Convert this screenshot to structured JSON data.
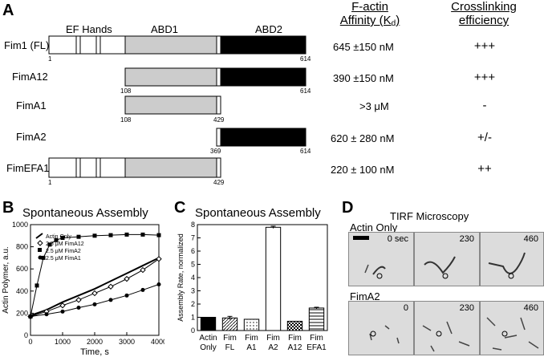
{
  "panelA": {
    "letter": "A",
    "header_affinity_line1": "F-actin",
    "header_affinity_line2": "Affinity (K",
    "header_affinity_sub": "d",
    "header_affinity_close": ")",
    "header_cross_line1": "Crosslinking",
    "header_cross_line2": "efficiency",
    "domain_labels": {
      "ef": "EF Hands",
      "abd1": "ABD1",
      "abd2": "ABD2"
    },
    "constructs": [
      {
        "name": "Fim1 (FL)",
        "start": "1",
        "end": "614",
        "affinity": "645 ±150 nM",
        "cross": "+++"
      },
      {
        "name": "FimA12",
        "start": "108",
        "end": "614",
        "affinity": "390 ±150 nM",
        "cross": "+++"
      },
      {
        "name": "FimA1",
        "start": "108",
        "end": "429",
        "affinity": ">3 μM",
        "cross": "-"
      },
      {
        "name": "FimA2",
        "start": "369",
        "end": "614",
        "affinity": "620 ± 280 nM",
        "cross": "+/-"
      },
      {
        "name": "FimEFA1",
        "start": "1",
        "end": "429",
        "affinity": "220 ± 100 nM",
        "cross": "++"
      }
    ],
    "colors": {
      "abd1": "#cccccc",
      "abd2": "#000000",
      "ef": "#ffffff"
    }
  },
  "panelB": {
    "letter": "B",
    "title": "Spontaneous Assembly"
  },
  "panelC": {
    "letter": "C",
    "title": "Spontaneous Assembly"
  },
  "panelD": {
    "letter": "D",
    "title": "TIRF Microscopy",
    "row1_label": "Actin Only",
    "row2_label": "FimA2",
    "row1_times": [
      "0 sec",
      "230",
      "460"
    ],
    "row2_times": [
      "0",
      "230",
      "460"
    ]
  },
  "chart_data": [
    {
      "type": "scatter",
      "title": "Spontaneous Assembly",
      "xlabel": "Time, s",
      "ylabel": "Actin Polymer, a.u.",
      "xlim": [
        0,
        4000
      ],
      "ylim": [
        0,
        1000
      ],
      "xticks": [
        0,
        1000,
        2000,
        3000,
        4000
      ],
      "yticks": [
        0,
        200,
        400,
        600,
        800,
        1000
      ],
      "legend_position": "top-left",
      "series": [
        {
          "name": "Actin Only",
          "marker": "line",
          "x": [
            0,
            500,
            1000,
            1500,
            2000,
            2500,
            3000,
            3500,
            4000
          ],
          "y": [
            180,
            230,
            300,
            360,
            420,
            490,
            560,
            630,
            700
          ]
        },
        {
          "name": "2.5 μM FimA12",
          "marker": "open-diamond",
          "x": [
            0,
            500,
            1000,
            1500,
            2000,
            2500,
            3000,
            3500,
            4000
          ],
          "y": [
            170,
            215,
            270,
            320,
            380,
            440,
            510,
            590,
            690
          ]
        },
        {
          "name": "2.5 μM FimA2",
          "marker": "filled-square",
          "x": [
            0,
            200,
            400,
            600,
            800,
            1000,
            1500,
            2000,
            2500,
            3000,
            3500,
            4000
          ],
          "y": [
            170,
            450,
            700,
            820,
            860,
            880,
            890,
            900,
            905,
            910,
            910,
            905
          ]
        },
        {
          "name": "2.5 μM FimA1",
          "marker": "filled-circle",
          "x": [
            0,
            500,
            1000,
            1500,
            2000,
            2500,
            3000,
            3500,
            4000
          ],
          "y": [
            170,
            190,
            215,
            250,
            280,
            320,
            360,
            410,
            460
          ]
        }
      ]
    },
    {
      "type": "bar",
      "title": "Spontaneous Assembly",
      "xlabel": "",
      "ylabel": "Assembly Rate, normalized",
      "ylim": [
        0,
        8
      ],
      "yticks": [
        0,
        1,
        2,
        3,
        4,
        5,
        6,
        7,
        8
      ],
      "categories": [
        "Actin Only",
        "Fim FL",
        "Fim A1",
        "Fim A2",
        "Fim A12",
        "Fim EFA1"
      ],
      "category_lines": [
        [
          "Actin",
          "Only"
        ],
        [
          "Fim",
          "FL"
        ],
        [
          "Fim",
          "A1"
        ],
        [
          "Fim",
          "A2"
        ],
        [
          "Fim",
          "A12"
        ],
        [
          "Fim",
          "EFA1"
        ]
      ],
      "values": [
        1.0,
        0.95,
        0.85,
        7.8,
        0.7,
        1.7
      ],
      "errors": [
        0.0,
        0.12,
        0.0,
        0.08,
        0.0,
        0.06
      ],
      "fills": [
        "solid-black",
        "diagonal",
        "dots",
        "white",
        "checker",
        "hlines"
      ]
    }
  ]
}
